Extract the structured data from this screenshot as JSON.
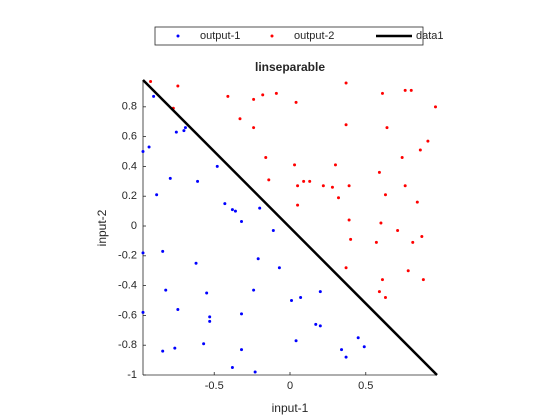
{
  "chart_data": {
    "type": "scatter",
    "title": "linseparable",
    "xlabel": "input-1",
    "ylabel": "input-2",
    "xlim": [
      -0.97,
      0.97
    ],
    "ylim": [
      -1,
      0.98
    ],
    "xticks": [
      -0.5,
      0,
      0.5
    ],
    "yticks": [
      -1,
      -0.8,
      -0.6,
      -0.4,
      -0.2,
      0,
      0.2,
      0.4,
      0.6,
      0.8
    ],
    "grid": false,
    "legend": "north-outside",
    "series": [
      {
        "name": "output-1",
        "color": "#0000ff",
        "mode": "markers",
        "x": [
          -0.9,
          -0.93,
          -0.97,
          -0.75,
          -0.7,
          -0.69,
          -0.79,
          -0.88,
          -0.61,
          -0.48,
          -0.43,
          -0.38,
          -0.36,
          -0.32,
          -0.2,
          -0.11,
          -0.97,
          -0.84,
          -0.62,
          -0.21,
          -0.07,
          -0.82,
          -0.55,
          -0.24,
          0.01,
          0.07,
          0.2,
          -0.74,
          -0.53,
          -0.53,
          -0.97,
          -0.32,
          0.17,
          0.2,
          -0.57,
          -0.76,
          -0.84,
          -0.32,
          0.04,
          0.34,
          0.45,
          0.49,
          0.37,
          -0.38,
          -0.23
        ],
        "y": [
          0.87,
          0.53,
          0.5,
          0.63,
          0.64,
          0.66,
          0.32,
          0.21,
          0.3,
          0.4,
          0.15,
          0.11,
          0.1,
          0.03,
          0.12,
          -0.03,
          -0.18,
          -0.17,
          -0.25,
          -0.22,
          -0.28,
          -0.43,
          -0.45,
          -0.43,
          -0.5,
          -0.48,
          -0.44,
          -0.56,
          -0.61,
          -0.64,
          -0.58,
          -0.59,
          -0.66,
          -0.67,
          -0.79,
          -0.82,
          -0.84,
          -0.83,
          -0.77,
          -0.83,
          -0.75,
          -0.81,
          -0.88,
          -0.95,
          -0.98
        ]
      },
      {
        "name": "output-2",
        "color": "#ff0000",
        "mode": "markers",
        "x": [
          -0.92,
          -0.74,
          -0.41,
          -0.24,
          -0.18,
          -0.09,
          0.04,
          0.37,
          0.61,
          0.76,
          0.8,
          0.96,
          -0.77,
          -0.33,
          -0.24,
          0.37,
          -0.16,
          0.64,
          0.91,
          0.86,
          0.74,
          0.59,
          0.03,
          0.3,
          0.05,
          0.09,
          0.13,
          0.22,
          0.28,
          0.39,
          -0.14,
          0.76,
          0.05,
          0.32,
          0.63,
          0.39,
          0.6,
          0.84,
          0.71,
          0.57,
          0.4,
          0.81,
          0.87,
          0.37,
          0.61,
          0.59,
          0.63,
          0.78,
          0.88
        ],
        "y": [
          0.97,
          0.94,
          0.87,
          0.85,
          0.88,
          0.89,
          0.83,
          0.96,
          0.89,
          0.91,
          0.91,
          0.8,
          0.79,
          0.72,
          0.66,
          0.68,
          0.46,
          0.66,
          0.57,
          0.51,
          0.46,
          0.36,
          0.41,
          0.41,
          0.27,
          0.3,
          0.3,
          0.27,
          0.26,
          0.27,
          0.31,
          0.27,
          0.14,
          0.19,
          0.21,
          0.04,
          0.02,
          0.16,
          -0.03,
          -0.11,
          -0.09,
          -0.11,
          -0.07,
          -0.28,
          -0.36,
          -0.44,
          -0.48,
          -0.3,
          -0.36
        ]
      },
      {
        "name": "data1",
        "color": "#000000",
        "mode": "line",
        "x": [
          -0.97,
          0.97
        ],
        "y": [
          0.98,
          -1
        ]
      }
    ]
  }
}
